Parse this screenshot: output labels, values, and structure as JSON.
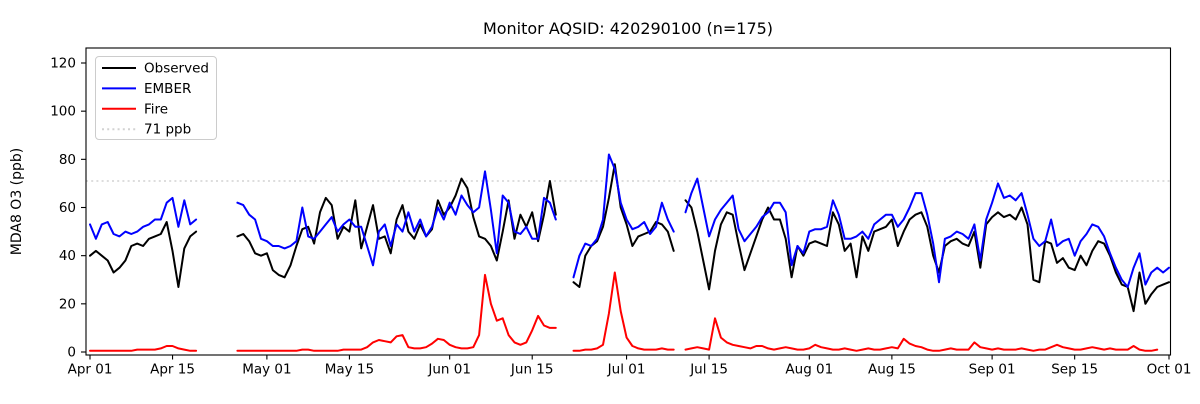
{
  "title": "Monitor AQSID: 420290100 (n=175)",
  "ylabel": "MDA8 O3 (ppb)",
  "chart_data": {
    "type": "line",
    "x_unit": "day index from Apr 01",
    "x_range_labels": [
      "Apr 01",
      "Oct 01"
    ],
    "xticks": [
      {
        "day": 0,
        "label": "Apr 01"
      },
      {
        "day": 14,
        "label": "Apr 15"
      },
      {
        "day": 30,
        "label": "May 01"
      },
      {
        "day": 44,
        "label": "May 15"
      },
      {
        "day": 61,
        "label": "Jun 01"
      },
      {
        "day": 75,
        "label": "Jun 15"
      },
      {
        "day": 91,
        "label": "Jul 01"
      },
      {
        "day": 105,
        "label": "Jul 15"
      },
      {
        "day": 122,
        "label": "Aug 01"
      },
      {
        "day": 136,
        "label": "Aug 15"
      },
      {
        "day": 153,
        "label": "Sep 01"
      },
      {
        "day": 167,
        "label": "Sep 15"
      },
      {
        "day": 183,
        "label": "Oct 01"
      }
    ],
    "yticks": [
      0,
      20,
      40,
      60,
      80,
      100,
      120
    ],
    "ylim": [
      -1.25,
      126.2
    ],
    "grid": false,
    "legend_position": "upper left",
    "ref_line": {
      "value": 71,
      "label": "71 ppb",
      "color": "#d2d2d2",
      "style": "dotted"
    },
    "data_gaps": [
      "Apr 20-25",
      "Jun 20-21",
      "Jul 10"
    ],
    "series": [
      {
        "name": "Observed",
        "color": "#000000",
        "values": [
          40,
          42,
          40,
          38,
          33,
          35,
          38,
          44,
          45,
          44,
          47,
          48,
          49,
          54,
          42,
          27,
          43,
          48,
          50,
          null,
          null,
          null,
          null,
          null,
          null,
          48,
          49,
          46,
          41,
          40,
          41,
          34,
          32,
          31,
          36,
          44,
          51,
          52,
          45,
          58,
          64,
          61,
          47,
          52,
          50,
          63,
          43,
          52,
          61,
          47,
          48,
          41,
          55,
          61,
          50,
          47,
          53,
          48,
          51,
          63,
          57,
          60,
          65,
          72,
          68,
          56,
          48,
          47,
          44,
          38,
          50,
          63,
          47,
          57,
          52,
          58,
          46,
          57,
          71,
          57,
          null,
          null,
          29,
          27,
          40,
          44,
          46,
          52,
          64,
          78,
          60,
          53,
          44,
          48,
          49,
          50,
          54,
          53,
          50,
          42,
          null,
          63,
          60,
          50,
          38,
          26,
          42,
          53,
          58,
          57,
          45,
          34,
          41,
          48,
          55,
          60,
          55,
          55,
          47,
          31,
          44,
          40,
          45,
          46,
          45,
          44,
          58,
          53,
          42,
          45,
          31,
          48,
          42,
          50,
          51,
          52,
          55,
          44,
          50,
          55,
          57,
          58,
          52,
          40,
          33,
          44,
          46,
          47,
          45,
          44,
          50,
          35,
          53,
          56,
          58,
          56,
          57,
          55,
          60,
          53,
          30,
          29,
          46,
          45,
          37,
          39,
          35,
          34,
          40,
          36,
          42,
          46,
          45,
          40,
          33,
          28,
          27,
          17,
          33,
          20,
          24,
          27,
          28,
          29
        ]
      },
      {
        "name": "EMBER",
        "color": "#0000ff",
        "values": [
          53,
          47,
          53,
          54,
          49,
          48,
          50,
          49,
          50,
          52,
          53,
          55,
          55,
          62,
          64,
          52,
          63,
          53,
          55,
          null,
          null,
          null,
          null,
          null,
          null,
          62,
          61,
          57,
          55,
          47,
          46,
          44,
          44,
          43,
          44,
          46,
          60,
          48,
          47,
          50,
          53,
          56,
          50,
          53,
          55,
          52,
          52,
          44,
          36,
          50,
          53,
          44,
          53,
          50,
          58,
          50,
          55,
          48,
          52,
          60,
          55,
          62,
          57,
          65,
          61,
          58,
          60,
          75,
          59,
          41,
          65,
          62,
          50,
          49,
          52,
          47,
          47,
          64,
          62,
          55,
          null,
          null,
          31,
          40,
          45,
          44,
          47,
          55,
          82,
          76,
          62,
          55,
          51,
          52,
          54,
          49,
          52,
          62,
          55,
          50,
          null,
          58,
          66,
          72,
          60,
          48,
          55,
          59,
          62,
          65,
          51,
          46,
          49,
          52,
          56,
          58,
          62,
          62,
          58,
          36,
          44,
          41,
          50,
          51,
          51,
          52,
          63,
          57,
          47,
          47,
          48,
          50,
          47,
          53,
          55,
          57,
          57,
          52,
          55,
          60,
          66,
          66,
          57,
          45,
          29,
          47,
          48,
          50,
          49,
          47,
          53,
          38,
          55,
          62,
          70,
          64,
          65,
          63,
          66,
          57,
          47,
          44,
          46,
          55,
          44,
          46,
          47,
          40,
          46,
          49,
          53,
          52,
          48,
          41,
          35,
          30,
          27,
          35,
          41,
          28,
          33,
          35,
          33,
          35
        ]
      },
      {
        "name": "Fire",
        "color": "#ff0000",
        "values": [
          0.5,
          0.5,
          0.5,
          0.5,
          0.5,
          0.5,
          0.5,
          0.5,
          1,
          1,
          1,
          1,
          1.5,
          2.5,
          2.5,
          1.5,
          1,
          0.5,
          0.5,
          null,
          null,
          null,
          null,
          null,
          null,
          0.5,
          0.5,
          0.5,
          0.5,
          0.5,
          0.5,
          0.5,
          0.5,
          0.5,
          0.5,
          0.5,
          1,
          1,
          0.5,
          0.5,
          0.5,
          0.5,
          0.5,
          1,
          1,
          1,
          1,
          2,
          4,
          5,
          4.5,
          4,
          6.5,
          7,
          2,
          1.5,
          1.5,
          2,
          3.5,
          5.5,
          5,
          3,
          2,
          1.5,
          1.5,
          2,
          7,
          32,
          20,
          13,
          14,
          7,
          4,
          3,
          4,
          9,
          15,
          11,
          10,
          10,
          null,
          null,
          0.5,
          0.5,
          1,
          1,
          1.5,
          3,
          16,
          33,
          17,
          6,
          2.5,
          1.5,
          1,
          1,
          1,
          1.5,
          1,
          1,
          null,
          1,
          1.5,
          2,
          1.5,
          1,
          14,
          6,
          4,
          3,
          2.5,
          2,
          1.5,
          2.5,
          2.5,
          1.5,
          1,
          1.5,
          2,
          1.5,
          1,
          1,
          1.5,
          3,
          2,
          1.5,
          1,
          1,
          1.5,
          1,
          0.5,
          1,
          1.5,
          1,
          1,
          1.5,
          2,
          1.5,
          5.5,
          3.5,
          2.5,
          2,
          1,
          0.5,
          0.5,
          1,
          1.5,
          1,
          1,
          1,
          4,
          2,
          1.5,
          1,
          1.5,
          1,
          1,
          1,
          1.5,
          1,
          0.5,
          1,
          1,
          2,
          3,
          2,
          1.5,
          1,
          1,
          1.5,
          2,
          1.5,
          1,
          1.5,
          1,
          1,
          1,
          2.5,
          1,
          0.5,
          0.5,
          1,
          null,
          null
        ]
      }
    ],
    "legend": [
      {
        "label": "Observed",
        "color": "#000000",
        "dash": null
      },
      {
        "label": "EMBER",
        "color": "#0000ff",
        "dash": null
      },
      {
        "label": "Fire",
        "color": "#ff0000",
        "dash": null
      },
      {
        "label": "71 ppb",
        "color": "#d2d2d2",
        "dash": "2 3.2"
      }
    ]
  }
}
